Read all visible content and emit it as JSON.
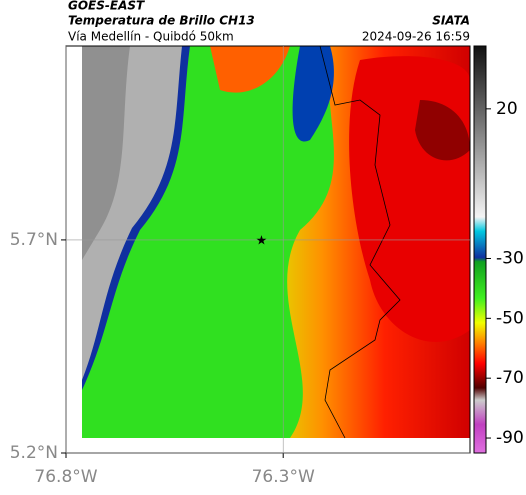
{
  "header": {
    "title": "GOES-EAST",
    "subtitle": "Temperatura de Brillo CH13",
    "location": "Vía Medellín - Quibdó 50km",
    "source": "SIATA",
    "datetime": "2024-09-26 16:59"
  },
  "map": {
    "xlim": [
      -76.8,
      -75.87
    ],
    "ylim": [
      5.2,
      6.155
    ],
    "xticks": [
      {
        "value": -76.8,
        "label": "76.8°W"
      },
      {
        "value": -76.3,
        "label": "76.3°W"
      }
    ],
    "yticks": [
      {
        "value": 5.7,
        "label": "5.7°N"
      },
      {
        "value": 5.2,
        "label": "5.2°N"
      }
    ],
    "marker": {
      "lon": -76.35,
      "lat": 5.7
    }
  },
  "colorbar": {
    "clim": [
      -95,
      41
    ],
    "ticks": [
      20,
      -30,
      -50,
      -70,
      -90
    ]
  }
}
